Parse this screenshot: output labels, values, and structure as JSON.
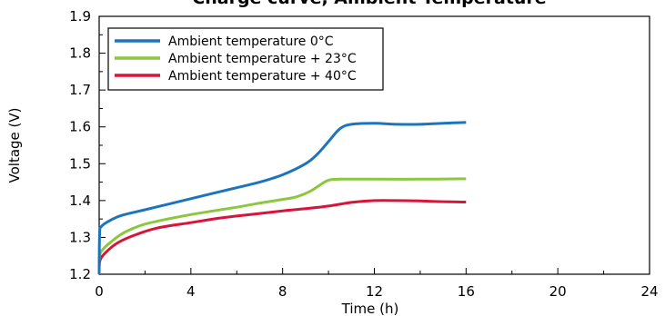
{
  "chart_data": {
    "type": "line",
    "title": "Charge curve, Ambient Temperature",
    "xlabel": "Time (h)",
    "ylabel": "Voltage (V)",
    "xlim": [
      0,
      24
    ],
    "ylim": [
      1.2,
      1.9
    ],
    "xticks": [
      "0",
      "4",
      "8",
      "12",
      "16",
      "20",
      "24"
    ],
    "yticks": [
      "1.2",
      "1.3",
      "1.4",
      "1.5",
      "1.6",
      "1.7",
      "1.8",
      "1.9"
    ],
    "grid": false,
    "legend_position": "top-left",
    "series": [
      {
        "name": "Ambient temperature 0°C",
        "color": "#1c75bc",
        "points": [
          [
            0,
            1.2
          ],
          [
            0.02,
            1.31
          ],
          [
            0.1,
            1.33
          ],
          [
            0.5,
            1.347
          ],
          [
            1,
            1.36
          ],
          [
            2,
            1.375
          ],
          [
            3,
            1.39
          ],
          [
            4,
            1.405
          ],
          [
            5,
            1.42
          ],
          [
            6,
            1.435
          ],
          [
            7,
            1.45
          ],
          [
            8,
            1.47
          ],
          [
            9,
            1.5
          ],
          [
            9.5,
            1.525
          ],
          [
            10,
            1.56
          ],
          [
            10.5,
            1.595
          ],
          [
            11,
            1.607
          ],
          [
            12,
            1.61
          ],
          [
            13,
            1.607
          ],
          [
            14,
            1.607
          ],
          [
            15,
            1.61
          ],
          [
            16,
            1.612
          ]
        ]
      },
      {
        "name": "Ambient temperature + 23°C",
        "color": "#8dc63f",
        "points": [
          [
            0,
            1.2
          ],
          [
            0.02,
            1.25
          ],
          [
            0.2,
            1.27
          ],
          [
            0.6,
            1.292
          ],
          [
            1,
            1.31
          ],
          [
            1.5,
            1.325
          ],
          [
            2,
            1.336
          ],
          [
            3,
            1.35
          ],
          [
            4,
            1.362
          ],
          [
            5,
            1.372
          ],
          [
            6,
            1.382
          ],
          [
            7,
            1.393
          ],
          [
            8,
            1.403
          ],
          [
            8.6,
            1.41
          ],
          [
            9.2,
            1.425
          ],
          [
            9.7,
            1.445
          ],
          [
            10,
            1.455
          ],
          [
            10.5,
            1.458
          ],
          [
            12,
            1.458
          ],
          [
            14,
            1.458
          ],
          [
            16,
            1.459
          ]
        ]
      },
      {
        "name": "Ambient temperature + 40°C",
        "color": "#d7143a",
        "points": [
          [
            0,
            1.22
          ],
          [
            0.05,
            1.24
          ],
          [
            0.3,
            1.26
          ],
          [
            0.8,
            1.285
          ],
          [
            1.5,
            1.305
          ],
          [
            2.5,
            1.325
          ],
          [
            4,
            1.34
          ],
          [
            5,
            1.35
          ],
          [
            6,
            1.358
          ],
          [
            7,
            1.365
          ],
          [
            8,
            1.372
          ],
          [
            9,
            1.378
          ],
          [
            10,
            1.385
          ],
          [
            11,
            1.395
          ],
          [
            12,
            1.4
          ],
          [
            13,
            1.4
          ],
          [
            14,
            1.399
          ],
          [
            15,
            1.397
          ],
          [
            16,
            1.396
          ]
        ]
      }
    ]
  }
}
